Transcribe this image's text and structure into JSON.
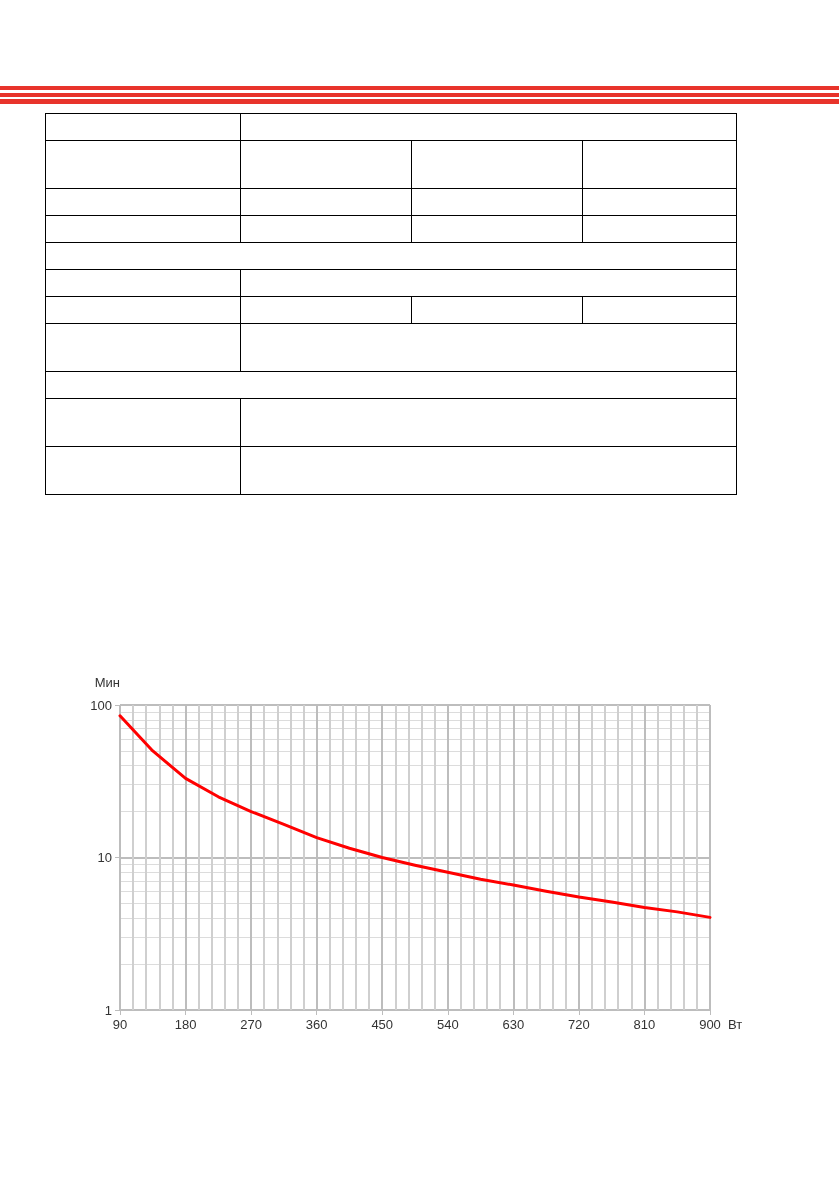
{
  "chart_data": {
    "type": "line",
    "xlabel": "Вт",
    "ylabel": "Мин",
    "x": [
      90,
      135,
      180,
      225,
      270,
      315,
      360,
      405,
      450,
      495,
      540,
      585,
      630,
      675,
      720,
      765,
      810,
      855,
      900
    ],
    "series": [
      {
        "color": "#ff0000",
        "values": [
          85,
          50,
          33,
          25,
          20,
          16.5,
          13.5,
          11.5,
          10,
          8.9,
          8,
          7.2,
          6.6,
          6,
          5.5,
          5.1,
          4.7,
          4.4,
          4.05
        ]
      }
    ],
    "xlim": [
      90,
      900
    ],
    "xticks": [
      90,
      180,
      270,
      360,
      450,
      540,
      630,
      720,
      810,
      900
    ],
    "ylim": [
      1,
      100
    ],
    "yticks": [
      1,
      10,
      100
    ],
    "log": "y",
    "grid": true,
    "marker": "none",
    "line_style": "solid"
  }
}
